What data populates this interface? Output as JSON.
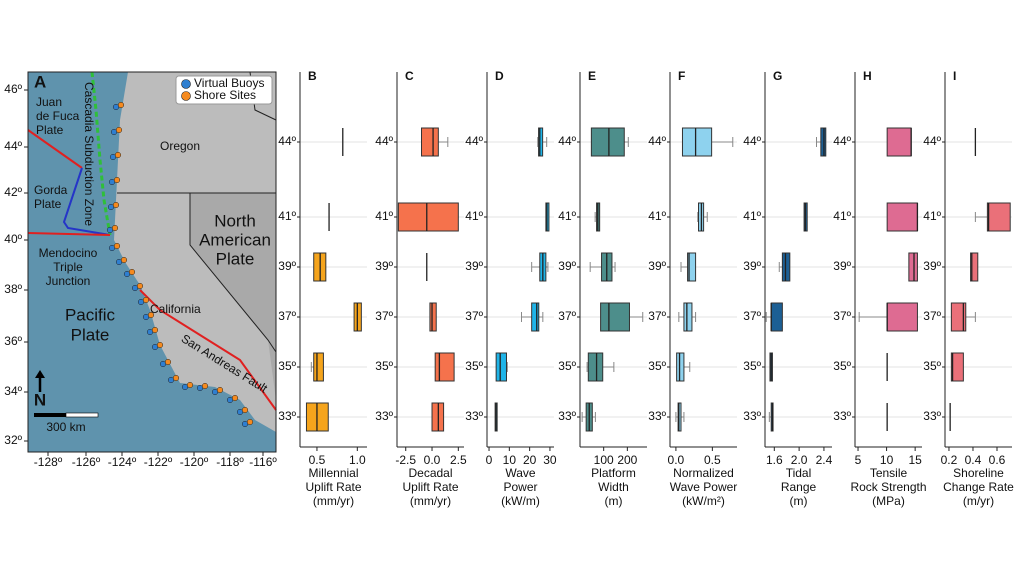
{
  "map": {
    "panel_label": "A",
    "legend": [
      "Virtual Buoys",
      "Shore Sites"
    ],
    "labels": {
      "juan_de_fuca": [
        "Juan",
        "de Fuca",
        "Plate"
      ],
      "cascadia": "Cascadia Subduction Zone",
      "oregon": "Oregon",
      "gorda": [
        "Gorda",
        "Plate"
      ],
      "north_american": [
        "North",
        "American",
        "Plate"
      ],
      "mendocino": [
        "Mendocino",
        "Triple",
        "Junction"
      ],
      "california": "California",
      "pacific": [
        "Pacific",
        "Plate"
      ],
      "san_andreas": "San Andreas Fault",
      "north": "N",
      "scale": "300 km"
    },
    "lat_ticks": [
      "46º",
      "44º",
      "42º",
      "40º",
      "38º",
      "36º",
      "34º",
      "32º"
    ],
    "lon_ticks": [
      "-128º",
      "-126º",
      "-124º",
      "-122º",
      "-120º",
      "-118º",
      "-116º"
    ]
  },
  "chart_data": [
    {
      "type": "box",
      "title": "B",
      "xlabel": [
        "Millennial",
        "Uplift Rate",
        "(mm/yr)"
      ],
      "color": "#f5a41c",
      "xlim": [
        0.29,
        1.12
      ],
      "xticks": [
        0.5,
        {
          "value": 1,
          "label": "1.0"
        }
      ],
      "ylim": [
        31.8,
        46.8
      ],
      "y": [
        44,
        41,
        39,
        37,
        35,
        33
      ],
      "yticks": [
        {
          "value": 44,
          "label": "44º"
        },
        {
          "value": 41,
          "label": "41º"
        },
        {
          "value": 39,
          "label": "39º"
        },
        {
          "value": 37,
          "label": "37º"
        },
        {
          "value": 35,
          "label": "35º"
        },
        {
          "value": 33,
          "label": "33º"
        }
      ],
      "boxes": [
        {
          "min": 0.82,
          "q1": 0.82,
          "median": 0.82,
          "q3": 0.82,
          "max": 0.82
        },
        {
          "min": 0.65,
          "q1": 0.65,
          "median": 0.65,
          "q3": 0.65,
          "max": 0.65
        },
        {
          "min": 0.46,
          "q1": 0.46,
          "median": 0.54,
          "q3": 0.61,
          "max": 0.61
        },
        {
          "min": 0.96,
          "q1": 0.96,
          "median": 1.0,
          "q3": 1.05,
          "max": 1.05
        },
        {
          "min": 0.43,
          "q1": 0.46,
          "median": 0.5,
          "q3": 0.58,
          "max": 0.58
        },
        {
          "min": 0.37,
          "q1": 0.37,
          "median": 0.5,
          "q3": 0.64,
          "max": 0.64
        }
      ]
    },
    {
      "type": "box",
      "title": "C",
      "xlabel": [
        "Decadal",
        "Uplift Rate",
        "(mm/yr)"
      ],
      "color": "#f5724c",
      "xlim": [
        -3.33,
        3.04
      ],
      "xticks": [
        -2.5,
        {
          "value": 0,
          "label": "0.0"
        },
        2.5
      ],
      "ylim": [
        31.8,
        46.8
      ],
      "y": [
        44,
        41,
        39,
        37,
        35,
        33
      ],
      "yticks": [
        {
          "value": 44,
          "label": "44º"
        },
        {
          "value": 41,
          "label": "41º"
        },
        {
          "value": 39,
          "label": "39º"
        },
        {
          "value": 37,
          "label": "37º"
        },
        {
          "value": 35,
          "label": "35º"
        },
        {
          "value": 33,
          "label": "33º"
        }
      ],
      "boxes": [
        {
          "min": -1.0,
          "q1": -1.0,
          "median": 0.1,
          "q3": 0.6,
          "max": 1.5
        },
        {
          "min": -3.2,
          "q1": -3.2,
          "median": -0.5,
          "q3": 2.5,
          "max": 2.5
        },
        {
          "min": -0.5,
          "q1": -0.5,
          "median": -0.5,
          "q3": -0.5,
          "max": -0.5
        },
        {
          "min": -0.2,
          "q1": -0.2,
          "median": 0,
          "q3": 0.4,
          "max": 0.4
        },
        {
          "min": 0.3,
          "q1": 0.3,
          "median": 0.7,
          "q3": 2.1,
          "max": 2.1
        },
        {
          "min": 0,
          "q1": 0,
          "median": 0.6,
          "q3": 1.1,
          "max": 1.1
        }
      ]
    },
    {
      "type": "box",
      "title": "D",
      "xlabel": [
        "Wave",
        "Power",
        "(kW/m)"
      ],
      "color": "#1fb4e8",
      "xlim": [
        -1.0,
        32.0
      ],
      "xticks": [
        0,
        10,
        20,
        30
      ],
      "ylim": [
        31.8,
        46.8
      ],
      "y": [
        44,
        41,
        39,
        37,
        35,
        33
      ],
      "yticks": [
        {
          "value": 44,
          "label": "44º"
        },
        {
          "value": 41,
          "label": "41º"
        },
        {
          "value": 39,
          "label": "39º"
        },
        {
          "value": 37,
          "label": "37º"
        },
        {
          "value": 35,
          "label": "35º"
        },
        {
          "value": 33,
          "label": "33º"
        }
      ],
      "boxes": [
        {
          "min": 24,
          "q1": 24.4,
          "median": 25,
          "q3": 26.4,
          "max": 28.4
        },
        {
          "min": 28,
          "q1": 28,
          "median": 28.5,
          "q3": 29.5,
          "max": 29.5
        },
        {
          "min": 21,
          "q1": 25,
          "median": 26.5,
          "q3": 28,
          "max": 29
        },
        {
          "min": 16,
          "q1": 21,
          "median": 23.5,
          "q3": 24.5,
          "max": 26.5
        },
        {
          "min": 3.5,
          "q1": 3.5,
          "median": 5.5,
          "q3": 8.6,
          "max": 9
        },
        {
          "min": 3,
          "q1": 3,
          "median": 3.5,
          "q3": 4,
          "max": 4
        }
      ]
    },
    {
      "type": "box",
      "title": "E",
      "xlabel": [
        "Platform",
        "Width",
        "(m)"
      ],
      "color": "#4d8e8b",
      "xlim": [
        0,
        283
      ],
      "xticks": [
        100,
        200
      ],
      "ylim": [
        31.8,
        46.8
      ],
      "y": [
        44,
        41,
        39,
        37,
        35,
        33
      ],
      "yticks": [
        {
          "value": 44,
          "label": "44º"
        },
        {
          "value": 41,
          "label": "41º"
        },
        {
          "value": 39,
          "label": "39º"
        },
        {
          "value": 37,
          "label": "37º"
        },
        {
          "value": 35,
          "label": "35º"
        },
        {
          "value": 33,
          "label": "33º"
        }
      ],
      "boxes": [
        {
          "min": 48,
          "q1": 48,
          "median": 122,
          "q3": 187,
          "max": 204
        },
        {
          "min": 64,
          "q1": 70,
          "median": 75,
          "q3": 83,
          "max": 83
        },
        {
          "min": 43,
          "q1": 91,
          "median": 113,
          "q3": 135,
          "max": 148
        },
        {
          "min": 87,
          "q1": 87,
          "median": 122,
          "q3": 209,
          "max": 265
        },
        {
          "min": 30,
          "q1": 35,
          "median": 70,
          "q3": 96,
          "max": 143
        },
        {
          "min": 9,
          "q1": 26,
          "median": 39,
          "q3": 52,
          "max": 65
        }
      ]
    },
    {
      "type": "box",
      "title": "F",
      "xlabel": [
        "Normalized",
        "Wave Power",
        "(kW/m²)"
      ],
      "color": "#8ed2ee",
      "xlim": [
        -0.081,
        0.838
      ],
      "xticks": [
        {
          "value": 0,
          "label": "0.0"
        },
        0.5
      ],
      "ylim": [
        31.8,
        46.8
      ],
      "y": [
        44,
        41,
        39,
        37,
        35,
        33
      ],
      "yticks": [
        {
          "value": 44,
          "label": "44º"
        },
        {
          "value": 41,
          "label": "41º"
        },
        {
          "value": 39,
          "label": "39º"
        },
        {
          "value": 37,
          "label": "37º"
        },
        {
          "value": 35,
          "label": "35º"
        },
        {
          "value": 33,
          "label": "33º"
        }
      ],
      "boxes": [
        {
          "min": 0.09,
          "q1": 0.09,
          "median": 0.27,
          "q3": 0.49,
          "max": 0.78
        },
        {
          "min": 0.3,
          "q1": 0.31,
          "median": 0.35,
          "q3": 0.38,
          "max": 0.43
        },
        {
          "min": 0.07,
          "q1": 0.16,
          "median": 0.18,
          "q3": 0.27,
          "max": 0.27
        },
        {
          "min": 0.04,
          "q1": 0.11,
          "median": 0.15,
          "q3": 0.22,
          "max": 0.27
        },
        {
          "min": 0.01,
          "q1": 0.01,
          "median": 0.05,
          "q3": 0.11,
          "max": 0.19
        },
        {
          "min": 0,
          "q1": 0.03,
          "median": 0.04,
          "q3": 0.07,
          "max": 0.11
        }
      ]
    },
    {
      "type": "box",
      "title": "G",
      "xlabel": [
        "Tidal",
        "Range",
        "(m)"
      ],
      "color": "#1c5f94",
      "xlim": [
        1.45,
        2.53
      ],
      "xticks": [
        1.6,
        {
          "value": 2,
          "label": "2.0"
        },
        2.4
      ],
      "ylim": [
        31.8,
        46.8
      ],
      "y": [
        44,
        41,
        39,
        37,
        35,
        33
      ],
      "yticks": [
        {
          "value": 44,
          "label": "44º"
        },
        {
          "value": 41,
          "label": "41º"
        },
        {
          "value": 39,
          "label": "39º"
        },
        {
          "value": 37,
          "label": "37º"
        },
        {
          "value": 35,
          "label": "35º"
        },
        {
          "value": 33,
          "label": "33º"
        }
      ],
      "boxes": [
        {
          "min": 2.28,
          "q1": 2.35,
          "median": 2.4,
          "q3": 2.43,
          "max": 2.43
        },
        {
          "min": 2.08,
          "q1": 2.08,
          "median": 2.1,
          "q3": 2.13,
          "max": 2.13
        },
        {
          "min": 1.68,
          "q1": 1.73,
          "median": 1.78,
          "q3": 1.85,
          "max": 1.85
        },
        {
          "min": 1.47,
          "q1": 1.55,
          "median": 1.55,
          "q3": 1.73,
          "max": 1.73
        },
        {
          "min": 1.53,
          "q1": 1.53,
          "median": 1.55,
          "q3": 1.57,
          "max": 1.57
        },
        {
          "min": 1.52,
          "q1": 1.55,
          "median": 1.57,
          "q3": 1.58,
          "max": 1.58
        }
      ]
    },
    {
      "type": "box",
      "title": "H",
      "xlabel": [
        "Tensile",
        "Rock Strength",
        "(MPa)"
      ],
      "color": "#de6b92",
      "xlim": [
        4.47,
        16.2
      ],
      "xticks": [
        5,
        10,
        15
      ],
      "ylim": [
        31.8,
        46.8
      ],
      "y": [
        44,
        41,
        39,
        37,
        35,
        33
      ],
      "yticks": [
        {
          "value": 44,
          "label": "44º"
        },
        {
          "value": 41,
          "label": "41º"
        },
        {
          "value": 39,
          "label": "39º"
        },
        {
          "value": 37,
          "label": "37º"
        },
        {
          "value": 35,
          "label": "35º"
        },
        {
          "value": 33,
          "label": "33º"
        }
      ],
      "boxes": [
        {
          "min": 10.1,
          "q1": 10.1,
          "median": 14.3,
          "q3": 14.3,
          "max": 14.3
        },
        {
          "min": 10.1,
          "q1": 10.1,
          "median": 15.4,
          "q3": 15.4,
          "max": 15.4
        },
        {
          "min": 13.9,
          "q1": 13.9,
          "median": 14.8,
          "q3": 15.4,
          "max": 15.4
        },
        {
          "min": 5.2,
          "q1": 10.1,
          "median": 10.1,
          "q3": 15.4,
          "max": 15.4
        },
        {
          "min": 10.1,
          "q1": 10.1,
          "median": 10.1,
          "q3": 10.1,
          "max": 10.1
        },
        {
          "min": 10.1,
          "q1": 10.1,
          "median": 10.1,
          "q3": 10.1,
          "max": 10.1
        }
      ]
    },
    {
      "type": "box",
      "title": "I",
      "xlabel": [
        "Shoreline",
        "Change Rate",
        "(m/yr)"
      ],
      "color": "#ea7079",
      "xlim": [
        0.167,
        0.725
      ],
      "xticks": [
        0.2,
        0.4,
        0.6
      ],
      "ylim": [
        31.8,
        46.8
      ],
      "y": [
        44,
        41,
        39,
        37,
        35,
        33
      ],
      "yticks": [
        {
          "value": 44,
          "label": "44º"
        },
        {
          "value": 41,
          "label": "41º"
        },
        {
          "value": 39,
          "label": "39º"
        },
        {
          "value": 37,
          "label": "37º"
        },
        {
          "value": 35,
          "label": "35º"
        },
        {
          "value": 33,
          "label": "33º"
        }
      ],
      "boxes": [
        {
          "min": 0.42,
          "q1": 0.42,
          "median": 0.42,
          "q3": 0.42,
          "max": 0.42
        },
        {
          "min": 0.42,
          "q1": 0.52,
          "median": 0.53,
          "q3": 0.71,
          "max": 0.71
        },
        {
          "min": 0.38,
          "q1": 0.38,
          "median": 0.39,
          "q3": 0.44,
          "max": 0.44
        },
        {
          "min": 0.22,
          "q1": 0.22,
          "median": 0.32,
          "q3": 0.34,
          "max": 0.42
        },
        {
          "min": 0.22,
          "q1": 0.22,
          "median": 0.23,
          "q3": 0.32,
          "max": 0.32
        },
        {
          "min": 0.21,
          "q1": 0.21,
          "median": 0.21,
          "q3": 0.21,
          "max": 0.21
        }
      ]
    }
  ]
}
